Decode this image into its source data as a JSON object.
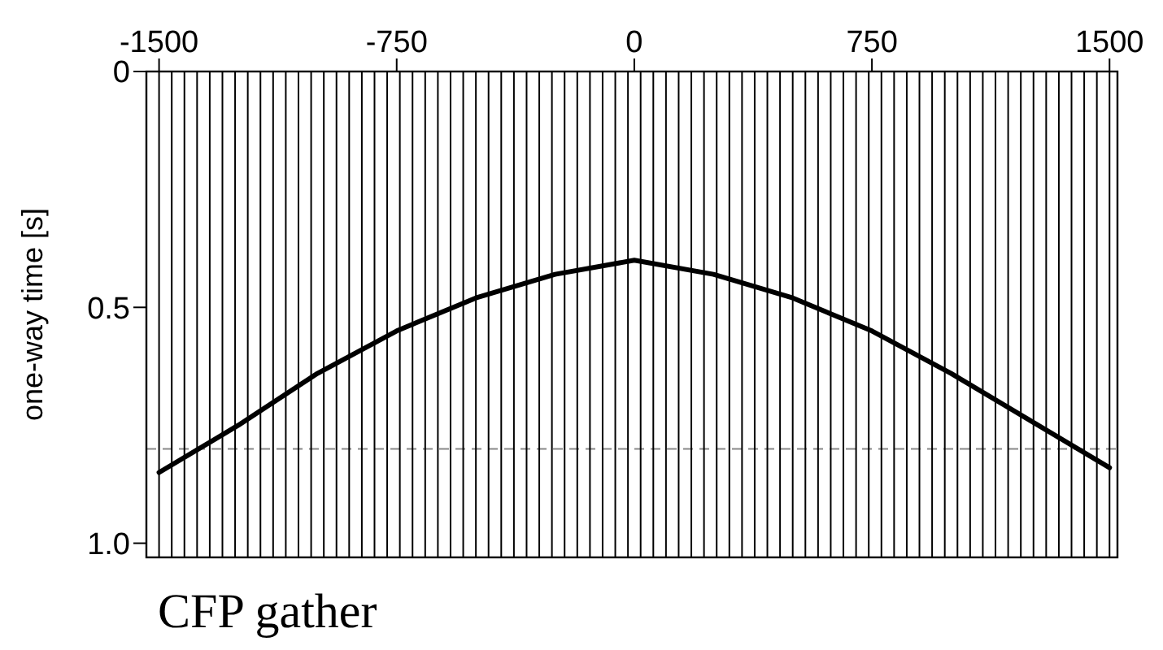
{
  "chart_data": {
    "type": "line",
    "title": "CFP gather",
    "ylabel": "one-way time [s]",
    "x": [
      -1500,
      -1250,
      -1000,
      -750,
      -500,
      -250,
      0,
      250,
      500,
      750,
      1000,
      1250,
      1500
    ],
    "series": [
      {
        "color": "#000000",
        "values": [
          0.85,
          0.75,
          0.64,
          0.55,
          0.48,
          0.43,
          0.4,
          0.43,
          0.48,
          0.55,
          0.64,
          0.74,
          0.84
        ]
      }
    ],
    "xlim": [
      -1540,
      1525
    ],
    "xticks": [
      -1500,
      -750,
      0,
      750,
      1500
    ],
    "ylim": [
      1.03,
      0
    ],
    "yticks": [
      0,
      0.5,
      {
        "value": 1,
        "label": "1.0"
      }
    ],
    "grid": false,
    "marker": "none",
    "line_style": "solid",
    "tick_labels": "xy",
    "ref_lines": [
      {
        "axis": "y",
        "value": 0.8,
        "color": "#888888",
        "line_style": "dashed"
      },
      {
        "axis": "x",
        "value": -1500,
        "color": "#000000"
      },
      {
        "axis": "x",
        "value": -1460,
        "color": "#000000"
      },
      {
        "axis": "x",
        "value": -1420,
        "color": "#000000"
      },
      {
        "axis": "x",
        "value": -1380,
        "color": "#000000"
      },
      {
        "axis": "x",
        "value": -1340,
        "color": "#000000"
      },
      {
        "axis": "x",
        "value": -1300,
        "color": "#000000"
      },
      {
        "axis": "x",
        "value": -1260,
        "color": "#000000"
      },
      {
        "axis": "x",
        "value": -1220,
        "color": "#000000"
      },
      {
        "axis": "x",
        "value": -1180,
        "color": "#000000"
      },
      {
        "axis": "x",
        "value": -1140,
        "color": "#000000"
      },
      {
        "axis": "x",
        "value": -1100,
        "color": "#000000"
      },
      {
        "axis": "x",
        "value": -1060,
        "color": "#000000"
      },
      {
        "axis": "x",
        "value": -1020,
        "color": "#000000"
      },
      {
        "axis": "x",
        "value": -980,
        "color": "#000000"
      },
      {
        "axis": "x",
        "value": -940,
        "color": "#000000"
      },
      {
        "axis": "x",
        "value": -900,
        "color": "#000000"
      },
      {
        "axis": "x",
        "value": -860,
        "color": "#000000"
      },
      {
        "axis": "x",
        "value": -820,
        "color": "#000000"
      },
      {
        "axis": "x",
        "value": -780,
        "color": "#000000"
      },
      {
        "axis": "x",
        "value": -740,
        "color": "#000000"
      },
      {
        "axis": "x",
        "value": -700,
        "color": "#000000"
      },
      {
        "axis": "x",
        "value": -660,
        "color": "#000000"
      },
      {
        "axis": "x",
        "value": -620,
        "color": "#000000"
      },
      {
        "axis": "x",
        "value": -580,
        "color": "#000000"
      },
      {
        "axis": "x",
        "value": -540,
        "color": "#000000"
      },
      {
        "axis": "x",
        "value": -500,
        "color": "#000000"
      },
      {
        "axis": "x",
        "value": -460,
        "color": "#000000"
      },
      {
        "axis": "x",
        "value": -420,
        "color": "#000000"
      },
      {
        "axis": "x",
        "value": -380,
        "color": "#000000"
      },
      {
        "axis": "x",
        "value": -340,
        "color": "#000000"
      },
      {
        "axis": "x",
        "value": -300,
        "color": "#000000"
      },
      {
        "axis": "x",
        "value": -260,
        "color": "#000000"
      },
      {
        "axis": "x",
        "value": -220,
        "color": "#000000"
      },
      {
        "axis": "x",
        "value": -180,
        "color": "#000000"
      },
      {
        "axis": "x",
        "value": -140,
        "color": "#000000"
      },
      {
        "axis": "x",
        "value": -100,
        "color": "#000000"
      },
      {
        "axis": "x",
        "value": -60,
        "color": "#000000"
      },
      {
        "axis": "x",
        "value": -20,
        "color": "#000000"
      },
      {
        "axis": "x",
        "value": 20,
        "color": "#000000"
      },
      {
        "axis": "x",
        "value": 60,
        "color": "#000000"
      },
      {
        "axis": "x",
        "value": 100,
        "color": "#000000"
      },
      {
        "axis": "x",
        "value": 140,
        "color": "#000000"
      },
      {
        "axis": "x",
        "value": 180,
        "color": "#000000"
      },
      {
        "axis": "x",
        "value": 220,
        "color": "#000000"
      },
      {
        "axis": "x",
        "value": 260,
        "color": "#000000"
      },
      {
        "axis": "x",
        "value": 300,
        "color": "#000000"
      },
      {
        "axis": "x",
        "value": 340,
        "color": "#000000"
      },
      {
        "axis": "x",
        "value": 380,
        "color": "#000000"
      },
      {
        "axis": "x",
        "value": 420,
        "color": "#000000"
      },
      {
        "axis": "x",
        "value": 460,
        "color": "#000000"
      },
      {
        "axis": "x",
        "value": 500,
        "color": "#000000"
      },
      {
        "axis": "x",
        "value": 540,
        "color": "#000000"
      },
      {
        "axis": "x",
        "value": 580,
        "color": "#000000"
      },
      {
        "axis": "x",
        "value": 620,
        "color": "#000000"
      },
      {
        "axis": "x",
        "value": 660,
        "color": "#000000"
      },
      {
        "axis": "x",
        "value": 700,
        "color": "#000000"
      },
      {
        "axis": "x",
        "value": 740,
        "color": "#000000"
      },
      {
        "axis": "x",
        "value": 780,
        "color": "#000000"
      },
      {
        "axis": "x",
        "value": 820,
        "color": "#000000"
      },
      {
        "axis": "x",
        "value": 860,
        "color": "#000000"
      },
      {
        "axis": "x",
        "value": 900,
        "color": "#000000"
      },
      {
        "axis": "x",
        "value": 940,
        "color": "#000000"
      },
      {
        "axis": "x",
        "value": 980,
        "color": "#000000"
      },
      {
        "axis": "x",
        "value": 1020,
        "color": "#000000"
      },
      {
        "axis": "x",
        "value": 1060,
        "color": "#000000"
      },
      {
        "axis": "x",
        "value": 1100,
        "color": "#000000"
      },
      {
        "axis": "x",
        "value": 1140,
        "color": "#000000"
      },
      {
        "axis": "x",
        "value": 1180,
        "color": "#000000"
      },
      {
        "axis": "x",
        "value": 1220,
        "color": "#000000"
      },
      {
        "axis": "x",
        "value": 1260,
        "color": "#000000"
      },
      {
        "axis": "x",
        "value": 1300,
        "color": "#000000"
      },
      {
        "axis": "x",
        "value": 1340,
        "color": "#000000"
      },
      {
        "axis": "x",
        "value": 1380,
        "color": "#000000"
      },
      {
        "axis": "x",
        "value": 1420,
        "color": "#000000"
      },
      {
        "axis": "x",
        "value": 1460,
        "color": "#000000"
      },
      {
        "axis": "x",
        "value": 1500,
        "color": "#000000"
      }
    ]
  }
}
